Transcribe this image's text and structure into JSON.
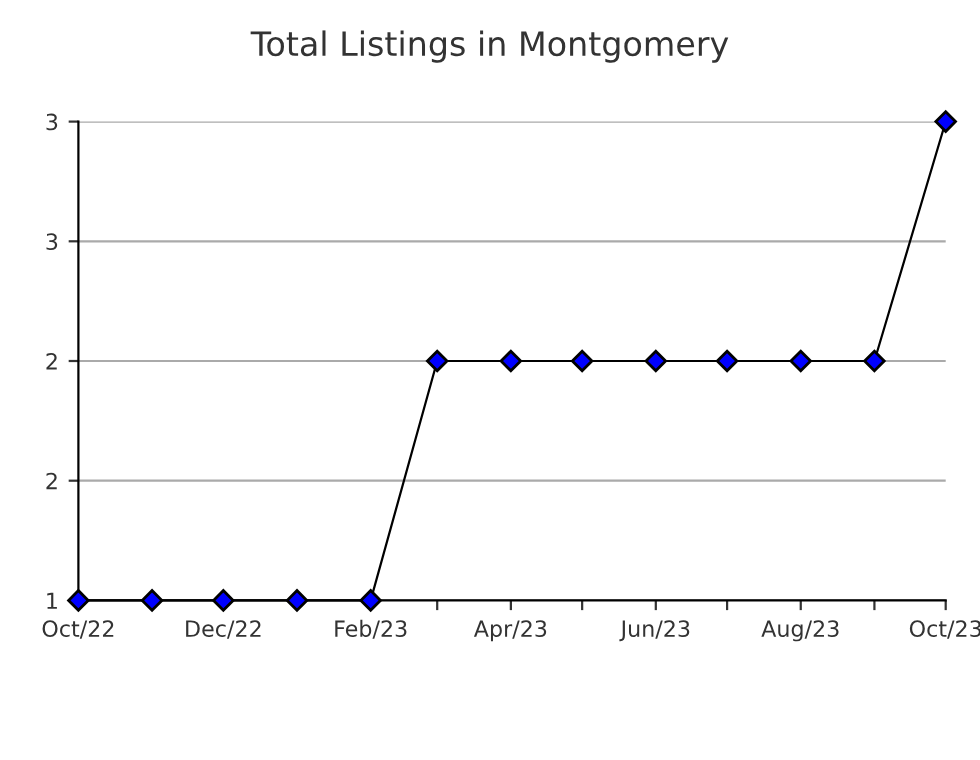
{
  "chart_data": {
    "type": "line",
    "title": "Total Listings in Montgomery",
    "x": [
      "2022-10",
      "2022-11",
      "2022-12",
      "2023-01",
      "2023-02",
      "2023-03",
      "2023-04",
      "2023-05",
      "2023-06",
      "2023-07",
      "2023-08",
      "2023-09",
      "2023-10"
    ],
    "series": [
      {
        "color": "#0000ff",
        "values": [
          1,
          1,
          1,
          1,
          1,
          2,
          2,
          2,
          2,
          2,
          2,
          2,
          3
        ]
      }
    ],
    "xlim": [
      "2022-10",
      "2023-10"
    ],
    "xticks": [
      {
        "value": "2022-10",
        "label": "Oct/22"
      },
      {
        "value": "2022-11",
        "label": null
      },
      {
        "value": "2022-12",
        "label": "Dec/22"
      },
      {
        "value": "2023-01",
        "label": null
      },
      {
        "value": "2023-02",
        "label": "Feb/23"
      },
      {
        "value": "2023-03",
        "label": null
      },
      {
        "value": "2023-04",
        "label": "Apr/23"
      },
      {
        "value": "2023-05",
        "label": null
      },
      {
        "value": "2023-06",
        "label": "Jun/23"
      },
      {
        "value": "2023-07",
        "label": null
      },
      {
        "value": "2023-08",
        "label": "Aug/23"
      },
      {
        "value": "2023-09",
        "label": null
      },
      {
        "value": "2023-10",
        "label": "Oct/23"
      }
    ],
    "ylim": [
      1,
      3
    ],
    "yticks": [
      1,
      {
        "value": 1.5,
        "label": "2"
      },
      2,
      {
        "value": 2.5,
        "label": "3"
      },
      3
    ],
    "grid": "y",
    "marker": "diamond",
    "line_style": "solid"
  }
}
